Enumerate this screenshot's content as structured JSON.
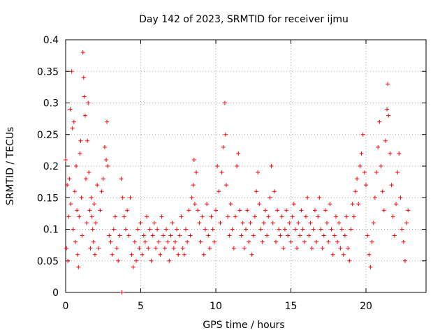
{
  "chart_data": {
    "type": "scatter",
    "title": "Day 142 of 2023, SRMTID for receiver ijmu",
    "xlabel": "GPS time / hours",
    "ylabel": "SRMTID / TECUs",
    "xlim": [
      0,
      24
    ],
    "ylim": [
      0,
      0.4
    ],
    "x_ticks": [
      "0",
      "5",
      "10",
      "15",
      "20"
    ],
    "x_tick_values": [
      0,
      5,
      10,
      15,
      20
    ],
    "y_ticks": [
      "0",
      "0.05",
      "0.1",
      "0.15",
      "0.2",
      "0.25",
      "0.3",
      "0.35",
      "0.4"
    ],
    "y_tick_values": [
      0,
      0.05,
      0.1,
      0.15,
      0.2,
      0.25,
      0.3,
      0.35,
      0.4
    ],
    "grid": true,
    "marker": "+",
    "color": "#ff0000",
    "series": [
      {
        "name": "SRMTID",
        "points": [
          [
            0.0,
            0.21
          ],
          [
            0.05,
            0.07
          ],
          [
            0.1,
            0.17
          ],
          [
            0.15,
            0.05
          ],
          [
            0.2,
            0.12
          ],
          [
            0.25,
            0.18
          ],
          [
            0.3,
            0.29
          ],
          [
            0.35,
            0.14
          ],
          [
            0.4,
            0.35
          ],
          [
            0.45,
            0.26
          ],
          [
            0.5,
            0.1
          ],
          [
            0.55,
            0.27
          ],
          [
            0.6,
            0.16
          ],
          [
            0.65,
            0.08
          ],
          [
            0.7,
            0.2
          ],
          [
            0.75,
            0.13
          ],
          [
            0.8,
            0.06
          ],
          [
            0.85,
            0.04
          ],
          [
            0.9,
            0.12
          ],
          [
            0.95,
            0.22
          ],
          [
            1.0,
            0.24
          ],
          [
            1.05,
            0.15
          ],
          [
            1.1,
            0.09
          ],
          [
            1.15,
            0.38
          ],
          [
            1.2,
            0.34
          ],
          [
            1.25,
            0.31
          ],
          [
            1.3,
            0.28
          ],
          [
            1.35,
            0.18
          ],
          [
            1.4,
            0.11
          ],
          [
            1.45,
            0.24
          ],
          [
            1.5,
            0.3
          ],
          [
            1.55,
            0.19
          ],
          [
            1.6,
            0.13
          ],
          [
            1.65,
            0.07
          ],
          [
            1.7,
            0.15
          ],
          [
            1.75,
            0.12
          ],
          [
            1.8,
            0.1
          ],
          [
            1.85,
            0.08
          ],
          [
            1.9,
            0.14
          ],
          [
            1.95,
            0.06
          ],
          [
            2.0,
            0.11
          ],
          [
            2.1,
            0.17
          ],
          [
            2.2,
            0.07
          ],
          [
            2.3,
            0.13
          ],
          [
            2.4,
            0.16
          ],
          [
            2.5,
            0.18
          ],
          [
            2.6,
            0.23
          ],
          [
            2.7,
            0.21
          ],
          [
            2.75,
            0.27
          ],
          [
            2.8,
            0.2
          ],
          [
            2.9,
            0.09
          ],
          [
            3.0,
            0.08
          ],
          [
            3.1,
            0.06
          ],
          [
            3.2,
            0.1
          ],
          [
            3.3,
            0.12
          ],
          [
            3.4,
            0.07
          ],
          [
            3.5,
            0.05
          ],
          [
            3.6,
            0.09
          ],
          [
            3.7,
            0.18
          ],
          [
            3.75,
            0.0
          ],
          [
            3.8,
            0.15
          ],
          [
            3.9,
            0.12
          ],
          [
            4.0,
            0.1
          ],
          [
            4.1,
            0.13
          ],
          [
            4.2,
            0.09
          ],
          [
            4.3,
            0.15
          ],
          [
            4.4,
            0.06
          ],
          [
            4.5,
            0.04
          ],
          [
            4.6,
            0.08
          ],
          [
            4.7,
            0.05
          ],
          [
            4.8,
            0.1
          ],
          [
            4.9,
            0.07
          ],
          [
            5.0,
            0.11
          ],
          [
            5.1,
            0.06
          ],
          [
            5.2,
            0.09
          ],
          [
            5.3,
            0.08
          ],
          [
            5.4,
            0.12
          ],
          [
            5.5,
            0.07
          ],
          [
            5.6,
            0.1
          ],
          [
            5.7,
            0.05
          ],
          [
            5.8,
            0.09
          ],
          [
            5.9,
            0.11
          ],
          [
            6.0,
            0.07
          ],
          [
            6.1,
            0.1
          ],
          [
            6.2,
            0.08
          ],
          [
            6.3,
            0.06
          ],
          [
            6.4,
            0.12
          ],
          [
            6.5,
            0.09
          ],
          [
            6.6,
            0.07
          ],
          [
            6.7,
            0.1
          ],
          [
            6.8,
            0.08
          ],
          [
            6.9,
            0.05
          ],
          [
            7.0,
            0.09
          ],
          [
            7.1,
            0.11
          ],
          [
            7.2,
            0.07
          ],
          [
            7.3,
            0.08
          ],
          [
            7.4,
            0.1
          ],
          [
            7.5,
            0.06
          ],
          [
            7.6,
            0.09
          ],
          [
            7.7,
            0.12
          ],
          [
            7.8,
            0.07
          ],
          [
            7.9,
            0.06
          ],
          [
            8.0,
            0.1
          ],
          [
            8.1,
            0.08
          ],
          [
            8.2,
            0.13
          ],
          [
            8.3,
            0.09
          ],
          [
            8.4,
            0.15
          ],
          [
            8.5,
            0.17
          ],
          [
            8.55,
            0.21
          ],
          [
            8.6,
            0.14
          ],
          [
            8.7,
            0.19
          ],
          [
            8.8,
            0.13
          ],
          [
            8.9,
            0.11
          ],
          [
            9.0,
            0.08
          ],
          [
            9.1,
            0.12
          ],
          [
            9.2,
            0.06
          ],
          [
            9.3,
            0.1
          ],
          [
            9.4,
            0.14
          ],
          [
            9.5,
            0.09
          ],
          [
            9.6,
            0.07
          ],
          [
            9.7,
            0.12
          ],
          [
            9.8,
            0.1
          ],
          [
            9.9,
            0.08
          ],
          [
            10.0,
            0.13
          ],
          [
            10.1,
            0.2
          ],
          [
            10.2,
            0.16
          ],
          [
            10.3,
            0.11
          ],
          [
            10.4,
            0.19
          ],
          [
            10.5,
            0.23
          ],
          [
            10.6,
            0.3
          ],
          [
            10.65,
            0.25
          ],
          [
            10.7,
            0.17
          ],
          [
            10.8,
            0.12
          ],
          [
            10.9,
            0.09
          ],
          [
            11.0,
            0.14
          ],
          [
            11.1,
            0.1
          ],
          [
            11.2,
            0.07
          ],
          [
            11.3,
            0.12
          ],
          [
            11.4,
            0.2
          ],
          [
            11.5,
            0.22
          ],
          [
            11.6,
            0.13
          ],
          [
            11.7,
            0.09
          ],
          [
            11.8,
            0.11
          ],
          [
            11.9,
            0.07
          ],
          [
            12.0,
            0.1
          ],
          [
            12.1,
            0.13
          ],
          [
            12.2,
            0.08
          ],
          [
            12.3,
            0.11
          ],
          [
            12.4,
            0.06
          ],
          [
            12.5,
            0.09
          ],
          [
            12.6,
            0.12
          ],
          [
            12.7,
            0.16
          ],
          [
            12.8,
            0.19
          ],
          [
            12.9,
            0.14
          ],
          [
            13.0,
            0.1
          ],
          [
            13.1,
            0.08
          ],
          [
            13.2,
            0.11
          ],
          [
            13.3,
            0.13
          ],
          [
            13.4,
            0.09
          ],
          [
            13.5,
            0.12
          ],
          [
            13.6,
            0.15
          ],
          [
            13.7,
            0.2
          ],
          [
            13.8,
            0.11
          ],
          [
            13.9,
            0.16
          ],
          [
            14.0,
            0.08
          ],
          [
            14.1,
            0.13
          ],
          [
            14.2,
            0.1
          ],
          [
            14.3,
            0.09
          ],
          [
            14.4,
            0.12
          ],
          [
            14.5,
            0.07
          ],
          [
            14.6,
            0.1
          ],
          [
            14.7,
            0.13
          ],
          [
            14.8,
            0.09
          ],
          [
            14.9,
            0.11
          ],
          [
            15.0,
            0.08
          ],
          [
            15.1,
            0.12
          ],
          [
            15.2,
            0.14
          ],
          [
            15.3,
            0.1
          ],
          [
            15.4,
            0.07
          ],
          [
            15.5,
            0.11
          ],
          [
            15.6,
            0.09
          ],
          [
            15.7,
            0.13
          ],
          [
            15.8,
            0.1
          ],
          [
            15.9,
            0.08
          ],
          [
            16.0,
            0.12
          ],
          [
            16.1,
            0.15
          ],
          [
            16.2,
            0.09
          ],
          [
            16.3,
            0.11
          ],
          [
            16.4,
            0.07
          ],
          [
            16.5,
            0.1
          ],
          [
            16.6,
            0.13
          ],
          [
            16.7,
            0.08
          ],
          [
            16.8,
            0.12
          ],
          [
            16.9,
            0.15
          ],
          [
            17.0,
            0.1
          ],
          [
            17.1,
            0.07
          ],
          [
            17.2,
            0.09
          ],
          [
            17.3,
            0.13
          ],
          [
            17.4,
            0.11
          ],
          [
            17.5,
            0.08
          ],
          [
            17.6,
            0.14
          ],
          [
            17.7,
            0.1
          ],
          [
            17.8,
            0.06
          ],
          [
            17.9,
            0.09
          ],
          [
            18.0,
            0.12
          ],
          [
            18.1,
            0.08
          ],
          [
            18.2,
            0.11
          ],
          [
            18.3,
            0.07
          ],
          [
            18.4,
            0.1
          ],
          [
            18.5,
            0.06
          ],
          [
            18.6,
            0.09
          ],
          [
            18.7,
            0.12
          ],
          [
            18.8,
            0.07
          ],
          [
            18.9,
            0.05
          ],
          [
            19.0,
            0.1
          ],
          [
            19.1,
            0.14
          ],
          [
            19.2,
            0.12
          ],
          [
            19.3,
            0.16
          ],
          [
            19.4,
            0.18
          ],
          [
            19.5,
            0.14
          ],
          [
            19.6,
            0.2
          ],
          [
            19.7,
            0.22
          ],
          [
            19.8,
            0.25
          ],
          [
            19.9,
            0.19
          ],
          [
            20.0,
            0.17
          ],
          [
            20.1,
            0.09
          ],
          [
            20.2,
            0.06
          ],
          [
            20.3,
            0.04
          ],
          [
            20.4,
            0.08
          ],
          [
            20.5,
            0.11
          ],
          [
            20.6,
            0.15
          ],
          [
            20.7,
            0.19
          ],
          [
            20.8,
            0.23
          ],
          [
            20.9,
            0.27
          ],
          [
            21.0,
            0.2
          ],
          [
            21.1,
            0.16
          ],
          [
            21.2,
            0.13
          ],
          [
            21.3,
            0.24
          ],
          [
            21.4,
            0.29
          ],
          [
            21.45,
            0.33
          ],
          [
            21.5,
            0.28
          ],
          [
            21.6,
            0.22
          ],
          [
            21.7,
            0.17
          ],
          [
            21.8,
            0.12
          ],
          [
            21.9,
            0.09
          ],
          [
            22.0,
            0.14
          ],
          [
            22.1,
            0.19
          ],
          [
            22.2,
            0.22
          ],
          [
            22.3,
            0.15
          ],
          [
            22.4,
            0.1
          ],
          [
            22.5,
            0.08
          ],
          [
            22.6,
            0.05
          ],
          [
            22.7,
            0.11
          ],
          [
            22.8,
            0.13
          ]
        ]
      }
    ]
  }
}
